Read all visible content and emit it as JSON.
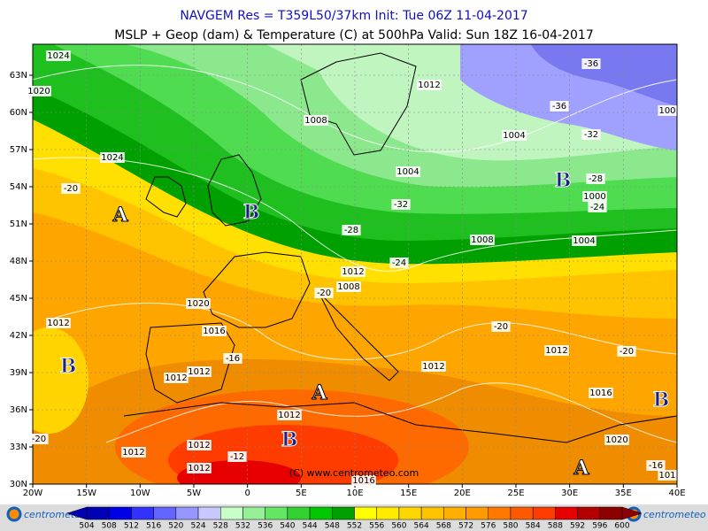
{
  "header": {
    "title": "NAVGEM Res = T359L50/37km   Init: Tue 06Z 11-04-2017",
    "subtitle": "MSLP + Geop (dam) & Temperature (C) at 500hPa   Valid: Sun 18Z 16-04-2017"
  },
  "lat_labels": [
    "30N",
    "33N",
    "36N",
    "39N",
    "42N",
    "45N",
    "48N",
    "51N",
    "54N",
    "57N",
    "60N",
    "63N"
  ],
  "lon_labels": [
    "20W",
    "15W",
    "10W",
    "5W",
    "0",
    "5E",
    "10E",
    "15E",
    "20E",
    "25E",
    "30E",
    "35E",
    "40E"
  ],
  "contour_labels": [
    1024,
    1020,
    1012,
    -36,
    -36,
    1008,
    1004,
    -32,
    1024,
    1004,
    -28,
    -20,
    1000,
    -32,
    -24,
    -28,
    1008,
    1004,
    -24,
    1012,
    1008,
    -20,
    1020,
    1012,
    1016,
    -20,
    1012,
    -16,
    -20,
    1012,
    1012,
    1012,
    1016,
    1012,
    1020,
    -20,
    1012,
    1012,
    -12,
    1012,
    1016,
    -16,
    101,
    100
  ],
  "pressure_centers": [
    "A",
    "B",
    "B",
    "B",
    "A",
    "B",
    "A",
    "B"
  ],
  "copyright": "(C) www.centrometeo.com",
  "logo": "centrometeo",
  "colorbar": {
    "ticks": [
      504,
      508,
      512,
      516,
      520,
      524,
      528,
      532,
      536,
      540,
      544,
      548,
      552,
      556,
      560,
      564,
      568,
      572,
      576,
      580,
      584,
      588,
      592,
      596,
      600
    ],
    "colors": [
      "#0000b4",
      "#0000e6",
      "#3232ff",
      "#6464ff",
      "#9696ff",
      "#c8c8ff",
      "#c8ffc8",
      "#96f096",
      "#64e664",
      "#32d232",
      "#00c800",
      "#00a000",
      "#ffff00",
      "#ffeb00",
      "#ffd700",
      "#ffc300",
      "#ffaf00",
      "#ff9b00",
      "#ff7800",
      "#ff5a00",
      "#ff3c00",
      "#e60000",
      "#b40000",
      "#8c0000"
    ]
  }
}
